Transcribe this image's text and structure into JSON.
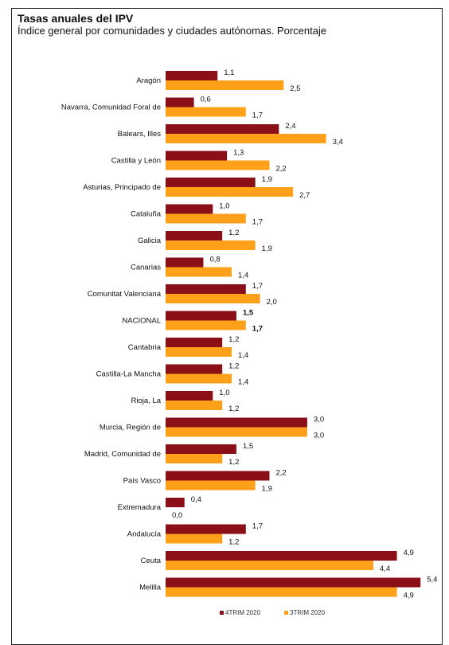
{
  "header": {
    "title": "Tasas anuales del IPV",
    "subtitle": "Índice general por comunidades y ciudades autónomas. Porcentaje"
  },
  "colors": {
    "series1": "#8B0F16",
    "series2": "#FFA01A"
  },
  "chart_data": {
    "type": "bar",
    "orientation": "horizontal",
    "title": "Tasas anuales del IPV",
    "subtitle": "Índice general por comunidades y ciudades autónomas. Porcentaje",
    "xlabel": "",
    "ylabel": "",
    "categories": [
      "Aragón",
      "Navarra, Comunidad Foral de",
      "Balears, Illes",
      "Castilla y León",
      "Asturias, Principado de",
      "Cataluña",
      "Galicia",
      "Canarias",
      "Comunitat Valenciana",
      "NACIONAL",
      "Cantabria",
      "Castilla-La Mancha",
      "Rioja, La",
      "Murcia, Región de",
      "Madrid, Comunidad de",
      "País Vasco",
      "Extremadura",
      "Andalucía",
      "Ceuta",
      "Melilla"
    ],
    "series": [
      {
        "name": "4TRIM 2020",
        "color": "#8B0F16",
        "values": [
          1.1,
          0.6,
          2.4,
          1.3,
          1.9,
          1.0,
          1.2,
          0.8,
          1.7,
          1.5,
          1.2,
          1.2,
          1.0,
          3.0,
          1.5,
          2.2,
          0.4,
          1.7,
          4.9,
          5.4
        ],
        "value_labels": [
          "1,1",
          "0,6",
          "2,4",
          "1,3",
          "1,9",
          "1,0",
          "1,2",
          "0,8",
          "1,7",
          "1,5",
          "1,2",
          "1,2",
          "1,0",
          "3,0",
          "1,5",
          "2,2",
          "0,4",
          "1,7",
          "4,9",
          "5,4"
        ]
      },
      {
        "name": "3TRIM 2020",
        "color": "#FFA01A",
        "values": [
          2.5,
          1.7,
          3.4,
          2.2,
          2.7,
          1.7,
          1.9,
          1.4,
          2.0,
          1.7,
          1.4,
          1.4,
          1.2,
          3.0,
          1.2,
          1.9,
          0.0,
          1.2,
          4.4,
          4.9
        ],
        "value_labels": [
          "2,5",
          "1,7",
          "3,4",
          "2,2",
          "2,7",
          "1,7",
          "1,9",
          "1,4",
          "2,0",
          "1,7",
          "1,4",
          "1,4",
          "1,2",
          "3,0",
          "1,2",
          "1,9",
          "0,0",
          "1,2",
          "4,4",
          "4,9"
        ]
      }
    ],
    "highlight_category": "NACIONAL",
    "legend": {
      "placement": "bottom-center",
      "items": [
        "4TRIM 2020",
        "3TRIM 2020"
      ]
    },
    "grid": false,
    "xlim": [
      0,
      5.4
    ]
  }
}
